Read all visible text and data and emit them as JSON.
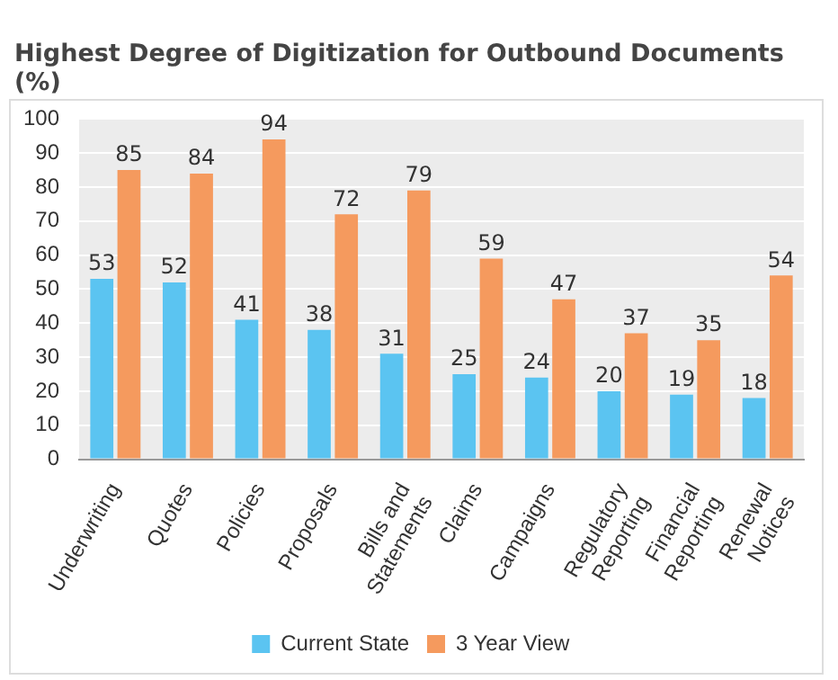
{
  "chart_data": {
    "type": "bar",
    "title": "Highest Degree of Digitization for Outbound Documents (%)",
    "categories": [
      "Underwriting",
      "Quotes",
      "Policies",
      "Proposals",
      "Bills and Statements",
      "Claims",
      "Campaigns",
      "Regulatory Reporting",
      "Financial Reporting",
      "Renewal Notices"
    ],
    "series": [
      {
        "name": "Current State",
        "color": "#5bc4f1",
        "values": [
          53,
          52,
          41,
          38,
          31,
          25,
          24,
          20,
          19,
          18
        ]
      },
      {
        "name": "3 Year View",
        "color": "#f59a5e",
        "values": [
          85,
          84,
          94,
          72,
          79,
          59,
          47,
          37,
          35,
          54
        ]
      }
    ],
    "ylim": [
      0,
      100
    ],
    "yticks": [
      0,
      10,
      20,
      30,
      40,
      50,
      60,
      70,
      80,
      90,
      100
    ],
    "grid": "y",
    "legend": "bottom",
    "data_labels": true
  }
}
